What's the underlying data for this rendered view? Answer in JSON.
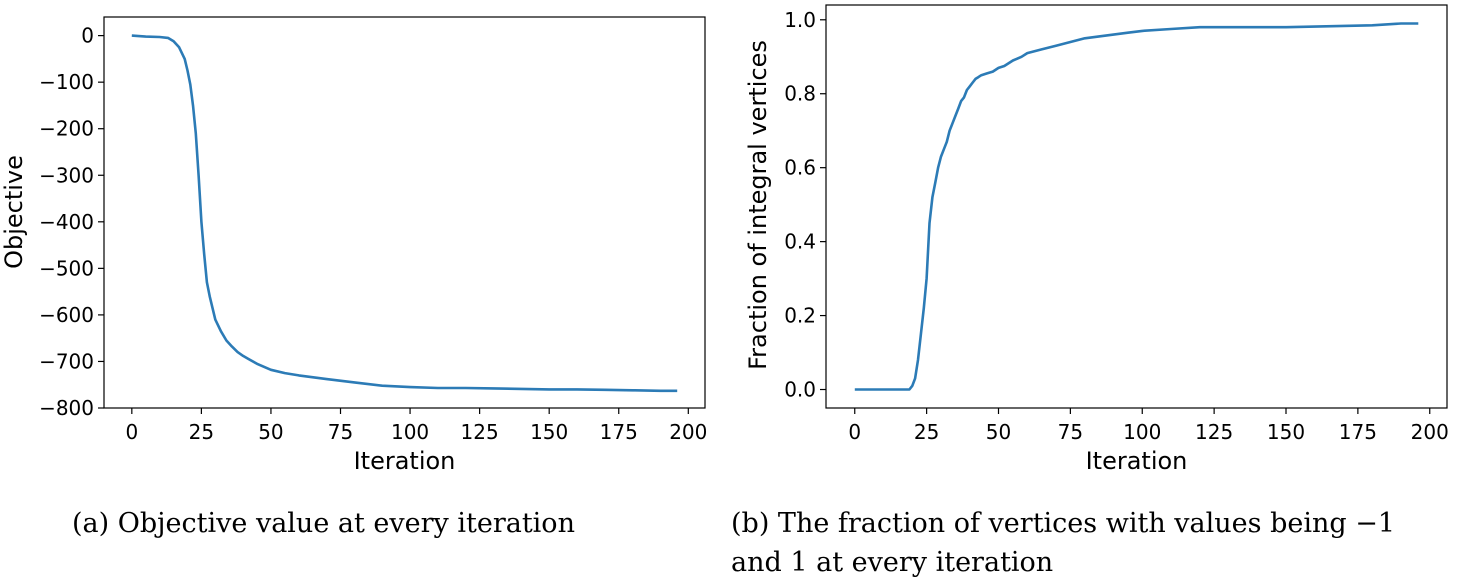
{
  "chart_data": [
    {
      "type": "line",
      "xlabel": "Iteration",
      "ylabel": "Objective",
      "xlim": [
        -10,
        206
      ],
      "ylim": [
        -800,
        40
      ],
      "xticks": [
        0,
        25,
        50,
        75,
        100,
        125,
        150,
        175,
        200
      ],
      "yticks": [
        0,
        -100,
        -200,
        -300,
        -400,
        -500,
        -600,
        -700,
        -800
      ],
      "grid": false,
      "color": "#2c7bb6",
      "series": [
        {
          "name": "objective",
          "x": [
            0,
            5,
            10,
            13,
            15,
            17,
            19,
            20,
            21,
            22,
            23,
            24,
            25,
            26,
            27,
            28,
            29,
            30,
            32,
            34,
            36,
            38,
            40,
            42,
            45,
            50,
            55,
            60,
            70,
            80,
            90,
            100,
            110,
            120,
            130,
            140,
            150,
            160,
            170,
            180,
            190,
            196
          ],
          "y": [
            0,
            -2,
            -3,
            -5,
            -12,
            -25,
            -50,
            -75,
            -105,
            -150,
            -210,
            -300,
            -400,
            -470,
            -530,
            -560,
            -585,
            -610,
            -635,
            -655,
            -668,
            -680,
            -688,
            -695,
            -705,
            -718,
            -725,
            -730,
            -738,
            -745,
            -752,
            -755,
            -757,
            -757,
            -758,
            -759,
            -760,
            -760,
            -761,
            -762,
            -763,
            -763
          ]
        }
      ],
      "caption": "(a) Objective value at every iteration"
    },
    {
      "type": "line",
      "xlabel": "Iteration",
      "ylabel": "Fraction of integral vertices",
      "xlim": [
        -10,
        206
      ],
      "ylim": [
        -0.05,
        1.04
      ],
      "xticks": [
        0,
        25,
        50,
        75,
        100,
        125,
        150,
        175,
        200
      ],
      "yticks": [
        0.0,
        0.2,
        0.4,
        0.6,
        0.8,
        1.0
      ],
      "grid": false,
      "color": "#2c7bb6",
      "series": [
        {
          "name": "fraction",
          "x": [
            0,
            10,
            19,
            20,
            21,
            22,
            23,
            24,
            25,
            26,
            27,
            28,
            29,
            30,
            31,
            32,
            33,
            34,
            35,
            36,
            37,
            38,
            39,
            40,
            41,
            42,
            43,
            44,
            46,
            48,
            50,
            52,
            55,
            58,
            60,
            65,
            70,
            75,
            80,
            85,
            90,
            95,
            100,
            110,
            120,
            125,
            150,
            180,
            190,
            196
          ],
          "y": [
            0,
            0,
            0,
            0.01,
            0.03,
            0.08,
            0.15,
            0.22,
            0.3,
            0.45,
            0.52,
            0.56,
            0.6,
            0.63,
            0.65,
            0.67,
            0.7,
            0.72,
            0.74,
            0.76,
            0.78,
            0.79,
            0.81,
            0.82,
            0.83,
            0.84,
            0.845,
            0.85,
            0.855,
            0.86,
            0.87,
            0.875,
            0.89,
            0.9,
            0.91,
            0.92,
            0.93,
            0.94,
            0.95,
            0.955,
            0.96,
            0.965,
            0.97,
            0.975,
            0.98,
            0.98,
            0.98,
            0.985,
            0.99,
            0.99
          ]
        }
      ],
      "caption_lines": [
        "(b) The fraction of vertices with values being −1",
        "and 1 at every iteration"
      ]
    }
  ]
}
